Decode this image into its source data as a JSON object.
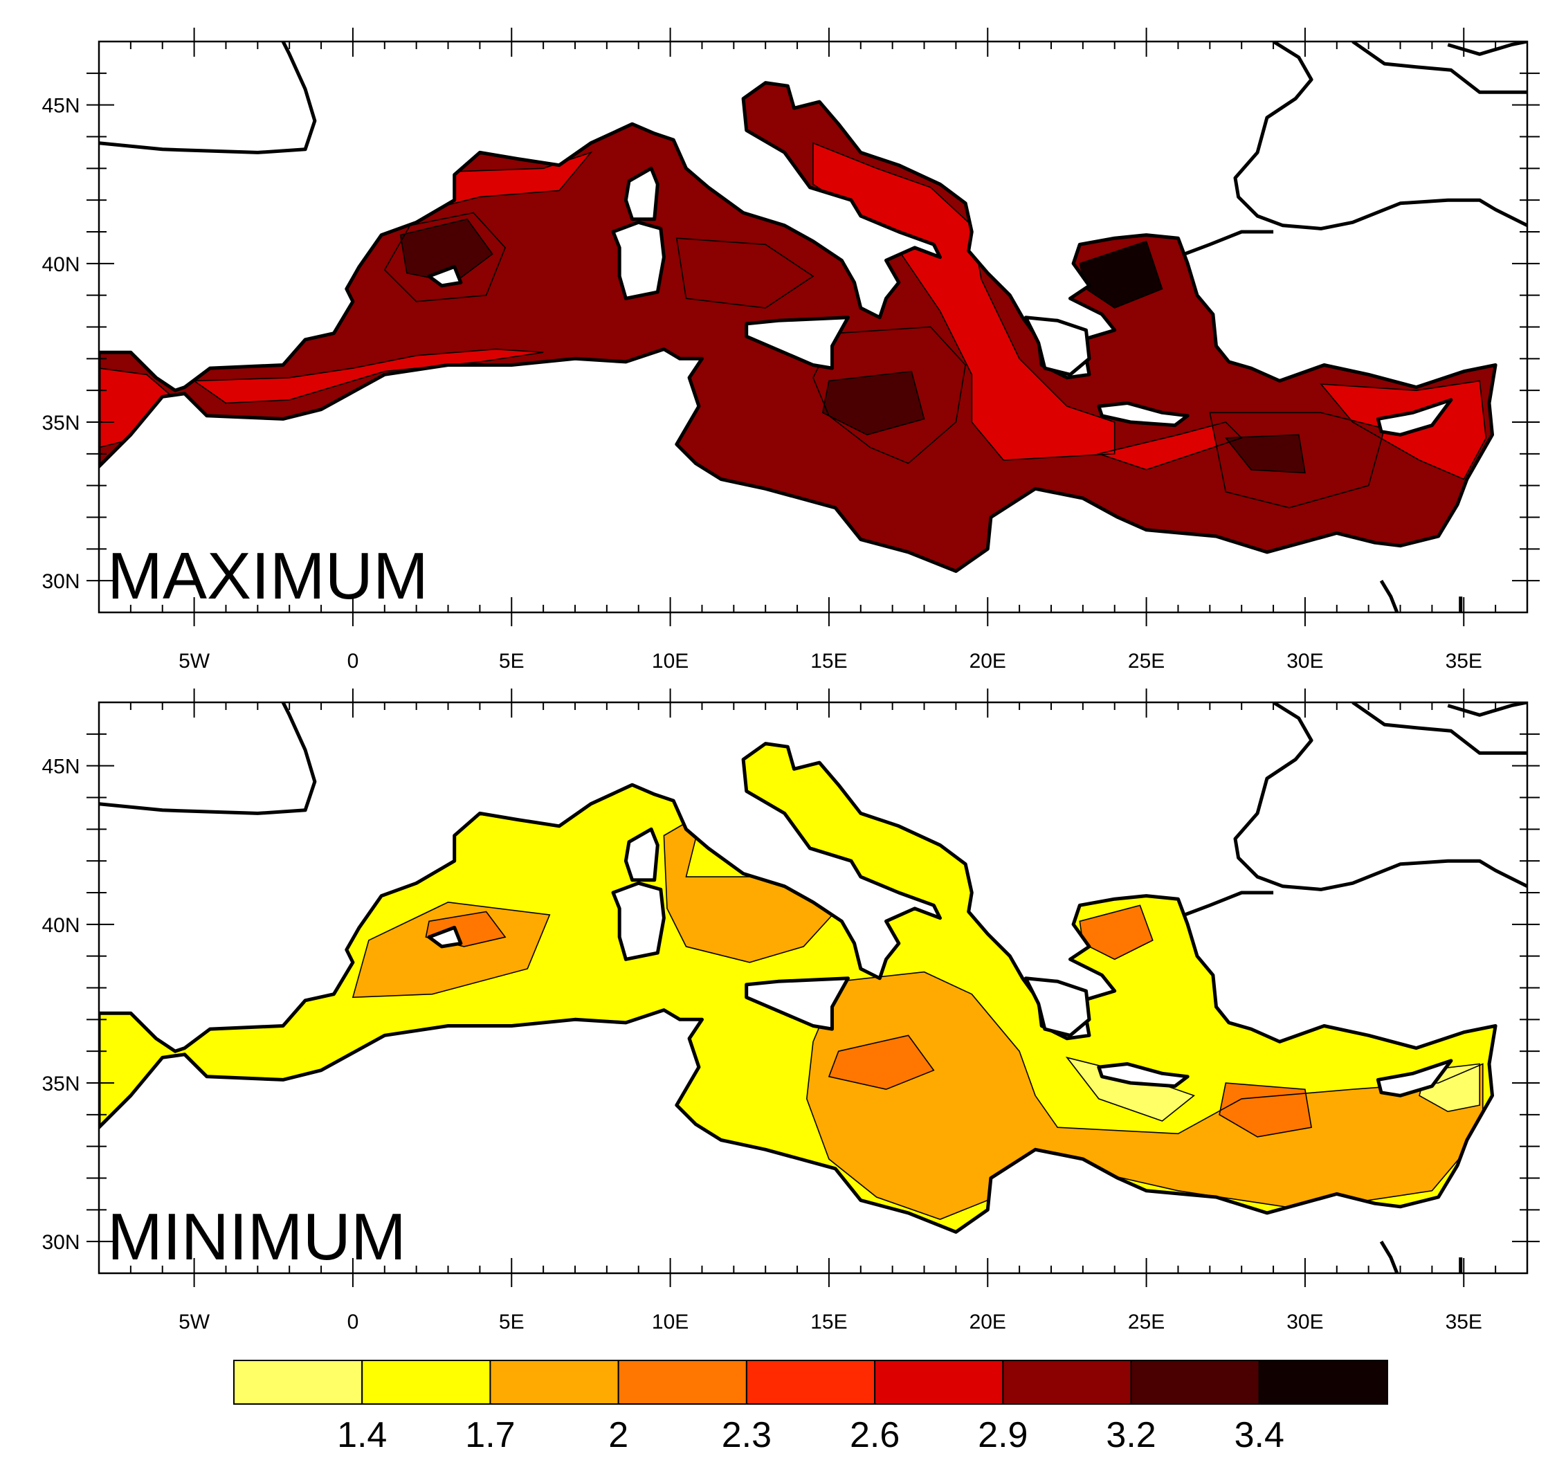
{
  "map": {
    "region": "Mediterranean Sea",
    "lon_range": [
      -8,
      37
    ],
    "lat_range": [
      29,
      47
    ],
    "lon_ticks": [
      {
        "value": -5,
        "label": "5W"
      },
      {
        "value": 0,
        "label": "0"
      },
      {
        "value": 5,
        "label": "5E"
      },
      {
        "value": 10,
        "label": "10E"
      },
      {
        "value": 15,
        "label": "15E"
      },
      {
        "value": 20,
        "label": "20E"
      },
      {
        "value": 25,
        "label": "25E"
      },
      {
        "value": 30,
        "label": "30E"
      },
      {
        "value": 35,
        "label": "35E"
      }
    ],
    "lat_ticks": [
      {
        "value": 30,
        "label": "30N"
      },
      {
        "value": 35,
        "label": "35N"
      },
      {
        "value": 40,
        "label": "40N"
      },
      {
        "value": 45,
        "label": "45N"
      }
    ]
  },
  "panels": [
    {
      "label": "MAXIMUM",
      "base_color": "#8b0000"
    },
    {
      "label": "MINIMUM",
      "base_color": "#ffff00"
    }
  ],
  "colorbar": {
    "colors": [
      "#ffff66",
      "#ffff00",
      "#ffaa00",
      "#ff7700",
      "#ff2a00",
      "#dd0000",
      "#8b0000",
      "#4a0000",
      "#100000"
    ],
    "labels": [
      "1.4",
      "1.7",
      "2",
      "2.3",
      "2.6",
      "2.9",
      "3.2",
      "3.4"
    ]
  }
}
